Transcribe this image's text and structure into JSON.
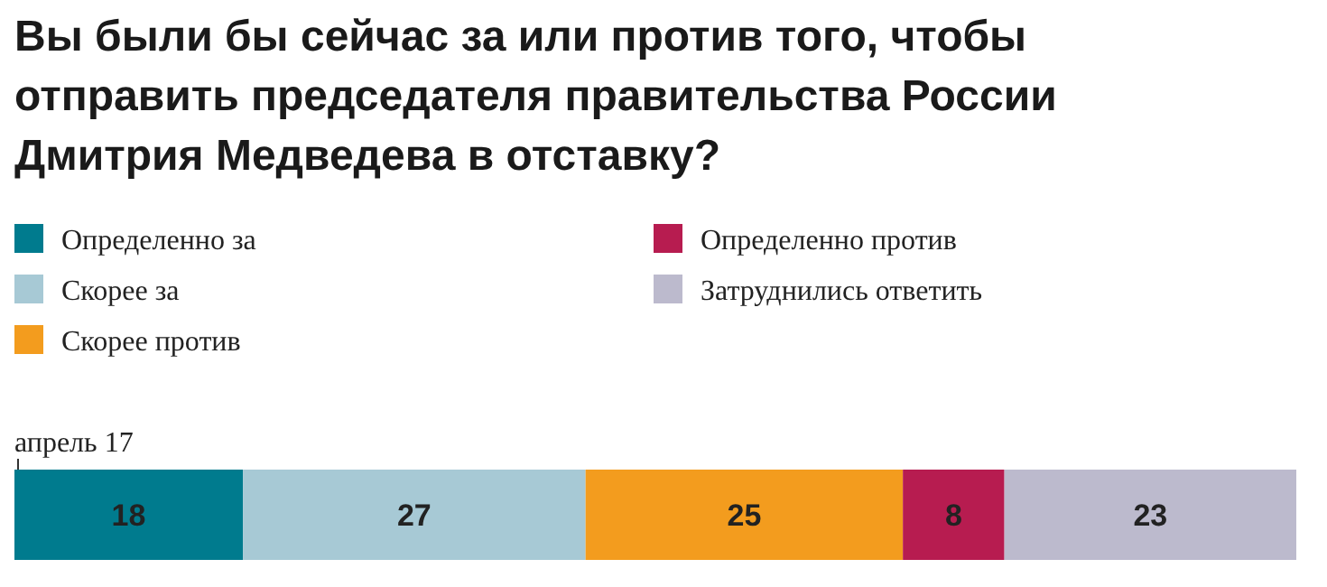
{
  "chart_data": {
    "type": "bar",
    "orientation": "horizontal",
    "stacked": true,
    "title": "Вы были бы сейчас за или против того, чтобы отправить председателя правительства России Дмитрия Медведева в отставку?",
    "categories": [
      "апрель 17"
    ],
    "series": [
      {
        "name": "Определенно за",
        "color": "#007b8e",
        "values": [
          18
        ]
      },
      {
        "name": "Скорее за",
        "color": "#a7c9d5",
        "values": [
          27
        ]
      },
      {
        "name": "Скорее против",
        "color": "#f39c1e",
        "values": [
          25
        ]
      },
      {
        "name": "Определенно против",
        "color": "#b71c50",
        "values": [
          8
        ]
      },
      {
        "name": "Затруднились ответить",
        "color": "#bcbacd",
        "values": [
          23
        ]
      }
    ],
    "data_labels": true,
    "legend": "top left"
  }
}
